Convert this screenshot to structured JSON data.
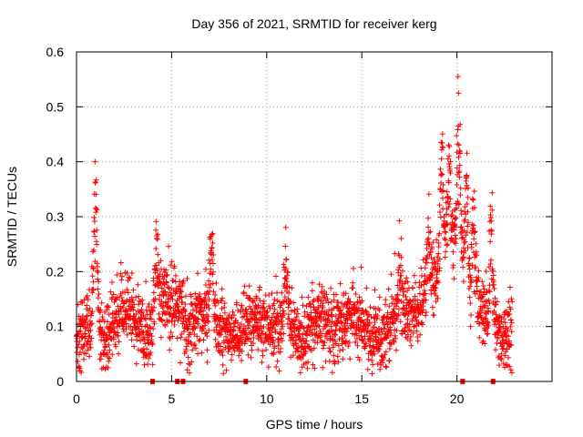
{
  "chart_data": {
    "type": "scatter",
    "title": "Day 356 of 2021, SRMTID for receiver kerg",
    "xlabel": "GPS time / hours",
    "ylabel": "SRMTID / TECUs",
    "xlim": [
      0,
      25
    ],
    "ylim": [
      0,
      0.6
    ],
    "x_ticks": [
      0,
      5,
      10,
      15,
      20
    ],
    "x_tick_labels": [
      "0",
      "5",
      "10",
      "15",
      "20"
    ],
    "y_ticks": [
      0,
      0.1,
      0.2,
      0.3,
      0.4,
      0.5,
      0.6
    ],
    "y_tick_labels": [
      "0",
      "0.1",
      "0.2",
      "0.3",
      "0.4",
      "0.5",
      "0.6"
    ],
    "grid": true,
    "marker": "plus",
    "series_color": "#ff0000",
    "baseline_markers_x": [
      4.0,
      5.3,
      5.6,
      8.9,
      20.3,
      21.9
    ],
    "profile": [
      [
        0.0,
        0.08
      ],
      [
        0.5,
        0.09
      ],
      [
        0.8,
        0.12
      ],
      [
        1.0,
        0.15
      ],
      [
        1.2,
        0.08
      ],
      [
        1.5,
        0.07
      ],
      [
        2.0,
        0.11
      ],
      [
        2.5,
        0.13
      ],
      [
        3.0,
        0.12
      ],
      [
        3.5,
        0.08
      ],
      [
        4.0,
        0.1
      ],
      [
        4.2,
        0.15
      ],
      [
        4.5,
        0.16
      ],
      [
        5.0,
        0.14
      ],
      [
        5.5,
        0.13
      ],
      [
        6.0,
        0.09
      ],
      [
        6.5,
        0.12
      ],
      [
        7.0,
        0.13
      ],
      [
        7.5,
        0.1
      ],
      [
        8.0,
        0.07
      ],
      [
        8.5,
        0.09
      ],
      [
        9.0,
        0.11
      ],
      [
        9.5,
        0.12
      ],
      [
        10.0,
        0.1
      ],
      [
        10.5,
        0.1
      ],
      [
        11.0,
        0.11
      ],
      [
        11.5,
        0.09
      ],
      [
        12.0,
        0.08
      ],
      [
        12.5,
        0.1
      ],
      [
        13.0,
        0.11
      ],
      [
        13.5,
        0.1
      ],
      [
        14.0,
        0.11
      ],
      [
        14.5,
        0.12
      ],
      [
        15.0,
        0.1
      ],
      [
        15.5,
        0.08
      ],
      [
        16.0,
        0.08
      ],
      [
        16.5,
        0.11
      ],
      [
        17.0,
        0.14
      ],
      [
        17.5,
        0.12
      ],
      [
        18.0,
        0.13
      ],
      [
        18.5,
        0.16
      ],
      [
        19.0,
        0.2
      ],
      [
        19.5,
        0.25
      ],
      [
        20.0,
        0.27
      ],
      [
        20.3,
        0.22
      ],
      [
        20.6,
        0.18
      ],
      [
        21.0,
        0.14
      ],
      [
        21.5,
        0.12
      ],
      [
        22.0,
        0.1
      ],
      [
        22.5,
        0.08
      ],
      [
        22.9,
        0.09
      ]
    ],
    "bursts": [
      {
        "x": 1.0,
        "peak": 0.39
      },
      {
        "x": 4.2,
        "peak": 0.28
      },
      {
        "x": 7.1,
        "peak": 0.29
      },
      {
        "x": 11.0,
        "peak": 0.25
      },
      {
        "x": 17.0,
        "peak": 0.22
      },
      {
        "x": 18.5,
        "peak": 0.3
      },
      {
        "x": 19.2,
        "peak": 0.49
      },
      {
        "x": 19.6,
        "peak": 0.45
      },
      {
        "x": 20.1,
        "peak": 0.56
      },
      {
        "x": 20.5,
        "peak": 0.41
      },
      {
        "x": 20.9,
        "peak": 0.35
      },
      {
        "x": 21.8,
        "peak": 0.32
      }
    ],
    "x_range_of_data": [
      0.0,
      22.9
    ],
    "point_count": 2600
  }
}
